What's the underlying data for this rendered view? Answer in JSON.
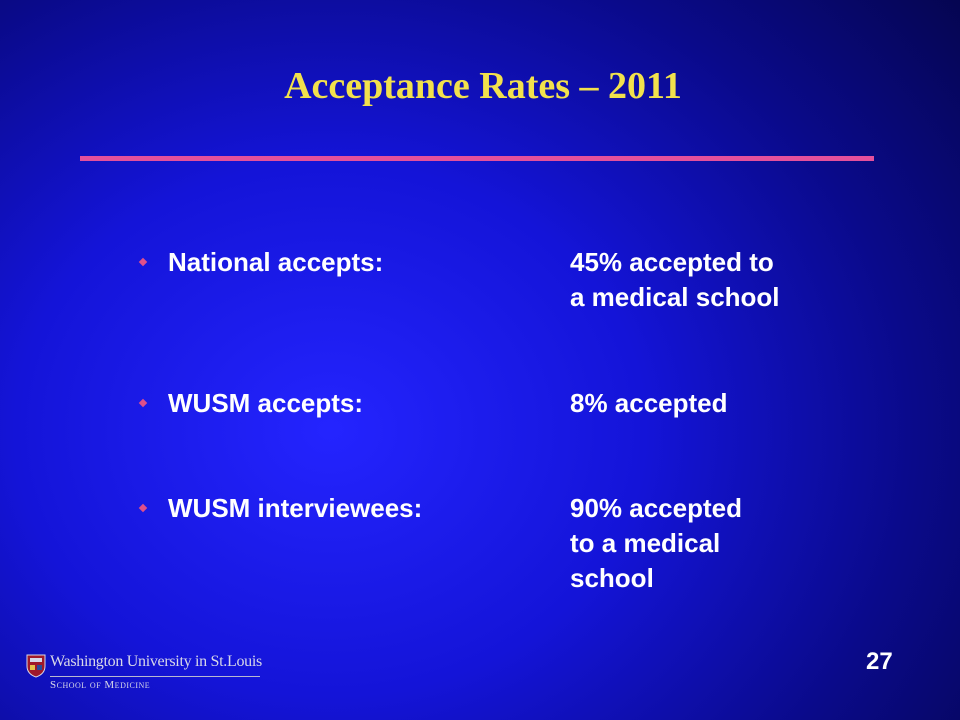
{
  "title": "Acceptance Rates – 2011",
  "items": [
    {
      "label": "National accepts:",
      "value_lines": [
        "45% accepted to",
        "a medical school"
      ]
    },
    {
      "label": "WUSM accepts:",
      "value_lines": [
        "8% accepted"
      ]
    },
    {
      "label": "WUSM interviewees:",
      "value_lines": [
        "90% accepted",
        "to a medical",
        "school"
      ]
    }
  ],
  "footer": {
    "institution": "Washington University in St.Louis",
    "school": "School of Medicine",
    "page_number": "27"
  }
}
